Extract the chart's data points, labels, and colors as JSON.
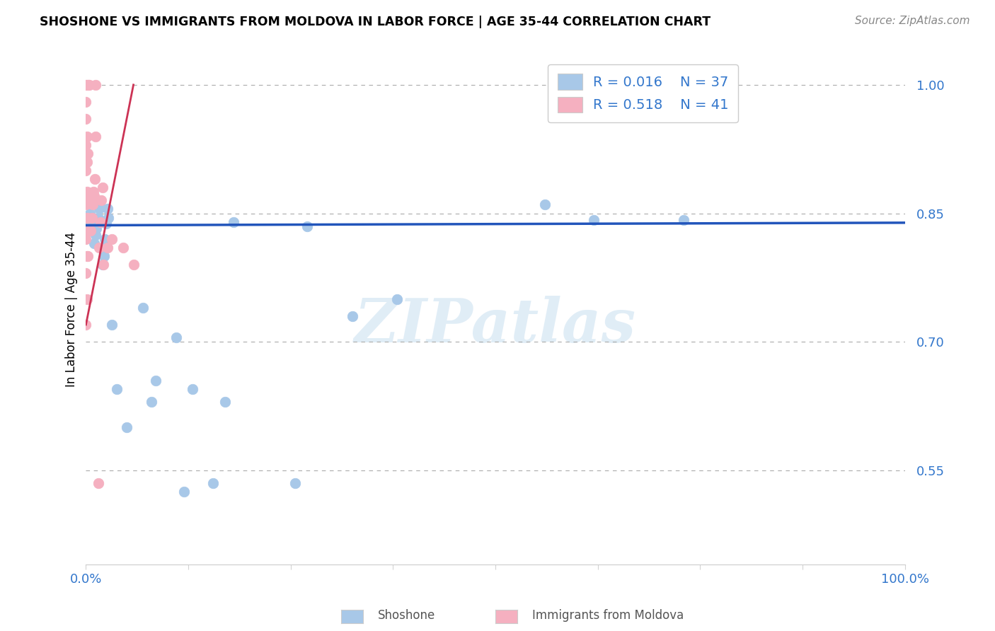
{
  "title": "SHOSHONE VS IMMIGRANTS FROM MOLDOVA IN LABOR FORCE | AGE 35-44 CORRELATION CHART",
  "source": "Source: ZipAtlas.com",
  "ylabel": "In Labor Force | Age 35-44",
  "xlim": [
    0.0,
    1.0
  ],
  "ylim": [
    0.44,
    1.035
  ],
  "ytick_labels": [
    "55.0%",
    "70.0%",
    "85.0%",
    "100.0%"
  ],
  "ytick_values": [
    0.55,
    0.7,
    0.85,
    1.0
  ],
  "xtick_values": [
    0.0,
    0.125,
    0.25,
    0.375,
    0.5,
    0.625,
    0.75,
    0.875,
    1.0
  ],
  "xtick_labels_show": [
    "0.0%",
    "",
    "",
    "",
    "",
    "",
    "",
    "",
    "100.0%"
  ],
  "shoshone_color": "#a8c8e8",
  "shoshone_edge_color": "#a8c8e8",
  "moldova_color": "#f5b0c0",
  "moldova_edge_color": "#f5b0c0",
  "shoshone_line_color": "#2255bb",
  "moldova_line_color": "#cc3355",
  "legend_text_color": "#3377cc",
  "legend_r_shoshone": "R = 0.016",
  "legend_n_shoshone": "N = 37",
  "legend_r_moldova": "R = 0.518",
  "legend_n_moldova": "N = 41",
  "watermark_text": "ZIPatlas",
  "watermark_color": "#c8dff0",
  "shoshone_x": [
    0.002,
    0.003,
    0.004,
    0.005,
    0.005,
    0.01,
    0.012,
    0.013,
    0.013,
    0.015,
    0.016,
    0.017,
    0.02,
    0.022,
    0.023,
    0.025,
    0.026,
    0.027,
    0.032,
    0.038,
    0.05,
    0.07,
    0.08,
    0.085,
    0.11,
    0.12,
    0.13,
    0.155,
    0.17,
    0.18,
    0.255,
    0.27,
    0.325,
    0.38,
    0.56,
    0.62,
    0.73
  ],
  "shoshone_y": [
    0.835,
    0.845,
    0.84,
    0.845,
    0.85,
    0.815,
    0.825,
    0.832,
    0.84,
    0.845,
    0.855,
    0.86,
    0.79,
    0.8,
    0.82,
    0.838,
    0.855,
    0.845,
    0.72,
    0.645,
    0.6,
    0.74,
    0.63,
    0.655,
    0.705,
    0.525,
    0.645,
    0.535,
    0.63,
    0.84,
    0.535,
    0.835,
    0.73,
    0.75,
    0.86,
    0.842,
    0.842
  ],
  "moldova_x": [
    0.0,
    0.0,
    0.0,
    0.0,
    0.0,
    0.0,
    0.0,
    0.0,
    0.0,
    0.001,
    0.001,
    0.001,
    0.001,
    0.001,
    0.001,
    0.001,
    0.002,
    0.002,
    0.002,
    0.003,
    0.003,
    0.003,
    0.004,
    0.006,
    0.007,
    0.008,
    0.009,
    0.01,
    0.011,
    0.012,
    0.012,
    0.015,
    0.016,
    0.018,
    0.019,
    0.02,
    0.021,
    0.026,
    0.032,
    0.045,
    0.058
  ],
  "moldova_y": [
    0.72,
    0.78,
    0.82,
    0.86,
    0.9,
    0.93,
    0.96,
    0.98,
    1.0,
    0.75,
    0.8,
    0.845,
    0.875,
    0.91,
    0.94,
    1.0,
    0.8,
    0.845,
    0.92,
    0.83,
    0.87,
    1.0,
    1.0,
    0.83,
    0.845,
    0.86,
    0.875,
    0.87,
    0.89,
    0.94,
    1.0,
    0.535,
    0.81,
    0.84,
    0.865,
    0.88,
    0.79,
    0.81,
    0.82,
    0.81,
    0.79
  ],
  "shoshone_trend_x": [
    0.0,
    1.0
  ],
  "shoshone_trend_y": [
    0.836,
    0.839
  ],
  "moldova_trend_x": [
    0.0,
    0.058
  ],
  "moldova_trend_y": [
    0.72,
    1.0
  ]
}
